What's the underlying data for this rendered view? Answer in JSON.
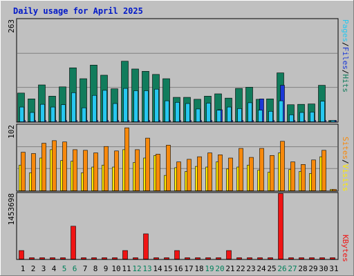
{
  "chart_data": [
    {
      "type": "bar",
      "title": "Daily usage for April 2025",
      "categories": [
        "1",
        "2",
        "3",
        "4",
        "5",
        "6",
        "7",
        "8",
        "9",
        "10",
        "11",
        "12",
        "13",
        "14",
        "15",
        "16",
        "17",
        "18",
        "19",
        "20",
        "21",
        "22",
        "23",
        "24",
        "25",
        "26",
        "27",
        "28",
        "29",
        "30",
        "31"
      ],
      "weekend_days": [
        "5",
        "6",
        "12",
        "13",
        "19",
        "20",
        "26",
        "27"
      ],
      "ylim": [
        0,
        263
      ],
      "y_tick_label": "263",
      "series": [
        {
          "name": "Hits",
          "color": "#117c5c",
          "values": [
            74,
            59,
            95,
            66,
            90,
            139,
            111,
            146,
            120,
            85,
            156,
            136,
            130,
            122,
            111,
            63,
            63,
            58,
            66,
            72,
            61,
            86,
            89,
            58,
            59,
            126,
            44,
            45,
            46,
            94,
            0
          ]
        },
        {
          "name": "Files",
          "color": "#1b38d6",
          "values": [
            0,
            0,
            0,
            0,
            0,
            0,
            0,
            0,
            0,
            0,
            0,
            0,
            0,
            0,
            0,
            0,
            0,
            0,
            0,
            31,
            0,
            0,
            0,
            59,
            0,
            94,
            0,
            0,
            0,
            0,
            0
          ]
        },
        {
          "name": "Pages",
          "color": "#27c7ef",
          "values": [
            38,
            24,
            45,
            38,
            44,
            75,
            36,
            68,
            81,
            47,
            86,
            80,
            80,
            84,
            54,
            50,
            47,
            33,
            48,
            30,
            38,
            34,
            49,
            30,
            27,
            54,
            18,
            24,
            25,
            53,
            0
          ]
        }
      ],
      "legend": [
        {
          "text": "Pages",
          "color": "#27c7ef"
        },
        {
          "text": "/",
          "color": "#000000"
        },
        {
          "text": "Files",
          "color": "#1b38d6"
        },
        {
          "text": "/",
          "color": "#000000"
        },
        {
          "text": "Hits",
          "color": "#117c5c"
        }
      ]
    },
    {
      "type": "bar",
      "categories": [
        "1",
        "2",
        "3",
        "4",
        "5",
        "6",
        "7",
        "8",
        "9",
        "10",
        "11",
        "12",
        "13",
        "14",
        "15",
        "16",
        "17",
        "18",
        "19",
        "20",
        "21",
        "22",
        "23",
        "24",
        "25",
        "26",
        "27",
        "28",
        "29",
        "30",
        "31"
      ],
      "ylim": [
        0,
        102
      ],
      "y_tick_label": "102",
      "series": [
        {
          "name": "Visits",
          "color": "#ffea00",
          "values": [
            40,
            28,
            51,
            64,
            47,
            46,
            28,
            37,
            40,
            37,
            64,
            44,
            51,
            55,
            24,
            36,
            30,
            38,
            37,
            45,
            34,
            37,
            40,
            32,
            29,
            59,
            33,
            30,
            27,
            53,
            0
          ]
        },
        {
          "name": "Sites",
          "color": "#f7890c",
          "values": [
            60,
            58,
            74,
            78,
            76,
            64,
            63,
            59,
            69,
            62,
            98,
            64,
            82,
            57,
            71,
            45,
            49,
            53,
            59,
            56,
            51,
            66,
            52,
            66,
            55,
            77,
            45,
            41,
            48,
            63,
            0
          ]
        }
      ],
      "legend": [
        {
          "text": "Sites",
          "color": "#f7890c"
        },
        {
          "text": "/",
          "color": "#000000"
        },
        {
          "text": "Visits",
          "color": "#ffea00"
        }
      ]
    },
    {
      "type": "bar",
      "categories": [
        "1",
        "2",
        "3",
        "4",
        "5",
        "6",
        "7",
        "8",
        "9",
        "10",
        "11",
        "12",
        "13",
        "14",
        "15",
        "16",
        "17",
        "18",
        "19",
        "20",
        "21",
        "22",
        "23",
        "24",
        "25",
        "26",
        "27",
        "28",
        "29",
        "30",
        "31"
      ],
      "ylim": [
        0,
        1453698
      ],
      "y_tick_label": "1453698",
      "series": [
        {
          "name": "KBytes",
          "color": "#ef1414",
          "values": [
            190000,
            0,
            0,
            0,
            0,
            730000,
            0,
            0,
            0,
            0,
            190000,
            0,
            560000,
            0,
            0,
            190000,
            0,
            0,
            0,
            0,
            190000,
            0,
            0,
            0,
            0,
            1453698,
            0,
            0,
            0,
            0,
            0
          ]
        }
      ],
      "legend": [
        {
          "text": "KBytes",
          "color": "#ef1414"
        }
      ]
    }
  ]
}
